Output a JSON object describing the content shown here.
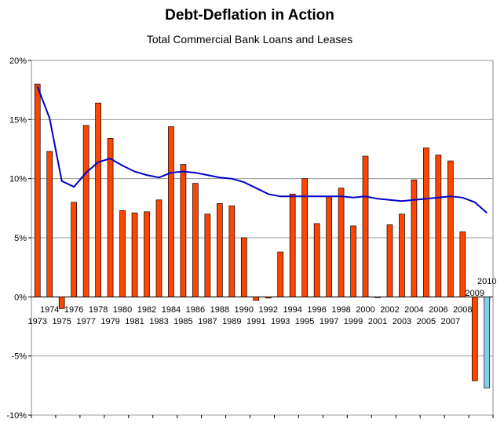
{
  "chart_data": {
    "type": "bar",
    "title": "Debt-Deflation in Action",
    "subtitle": "Total Commercial Bank Loans and Leases",
    "xlabel": "",
    "ylabel": "",
    "ylim": [
      -10,
      20
    ],
    "y_ticks": [
      "-10%",
      "-5%",
      "0%",
      "5%",
      "10%",
      "15%",
      "20%"
    ],
    "y_tick_values": [
      -10,
      -5,
      0,
      5,
      10,
      15,
      20
    ],
    "grid": true,
    "categories": [
      "1973",
      "1974",
      "1975",
      "1976",
      "1977",
      "1978",
      "1979",
      "1980",
      "1981",
      "1982",
      "1983",
      "1984",
      "1985",
      "1986",
      "1987",
      "1988",
      "1989",
      "1990",
      "1991",
      "1992",
      "1993",
      "1994",
      "1995",
      "1996",
      "1997",
      "1998",
      "1999",
      "2000",
      "2001",
      "2002",
      "2003",
      "2004",
      "2005",
      "2006",
      "2007",
      "2008",
      "2009",
      "2010"
    ],
    "series": [
      {
        "type": "bar",
        "color": "#ff4500",
        "values": [
          18.0,
          12.3,
          -1.0,
          8.0,
          14.5,
          16.4,
          13.4,
          7.3,
          7.1,
          7.2,
          8.2,
          14.4,
          11.2,
          9.6,
          7.0,
          7.9,
          7.7,
          5.0,
          -0.3,
          -0.1,
          3.8,
          8.7,
          10.0,
          6.2,
          8.5,
          9.2,
          6.0,
          11.9,
          0.0,
          6.1,
          7.0,
          9.9,
          12.6,
          12.0,
          11.5,
          5.5,
          -7.1,
          -0.5
        ]
      },
      {
        "type": "bar",
        "color": "#87ceeb",
        "values": [
          null,
          null,
          null,
          null,
          null,
          null,
          null,
          null,
          null,
          null,
          null,
          null,
          null,
          null,
          null,
          null,
          null,
          null,
          null,
          null,
          null,
          null,
          null,
          null,
          null,
          null,
          null,
          null,
          null,
          null,
          null,
          null,
          null,
          null,
          null,
          null,
          null,
          -7.7
        ]
      },
      {
        "type": "line",
        "color": "#0000cc",
        "values": [
          17.8,
          15.1,
          9.8,
          9.3,
          10.5,
          11.4,
          11.7,
          11.1,
          10.6,
          10.3,
          10.1,
          10.5,
          10.6,
          10.5,
          10.3,
          10.1,
          10.0,
          9.7,
          9.2,
          8.7,
          8.5,
          8.5,
          8.5,
          8.5,
          8.5,
          8.5,
          8.4,
          8.5,
          8.3,
          8.2,
          8.1,
          8.2,
          8.3,
          8.4,
          8.5,
          8.4,
          8.0,
          7.1
        ]
      }
    ]
  }
}
